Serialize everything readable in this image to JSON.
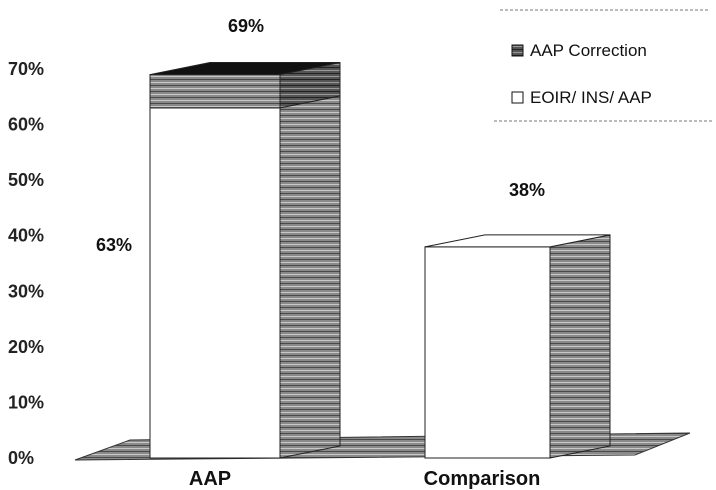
{
  "chart_data": {
    "type": "bar",
    "stacked": true,
    "three_d": true,
    "categories": [
      "AAP",
      "Comparison"
    ],
    "series": [
      {
        "name": "EOIR/ INS/ AAP",
        "values": [
          63,
          38
        ],
        "color": "#ffffff"
      },
      {
        "name": "AAP Correction",
        "values": [
          6,
          0
        ],
        "color": "#1a1a1a"
      }
    ],
    "totals": [
      69,
      38
    ],
    "data_labels": [
      {
        "text": "63%",
        "category": "AAP",
        "series": "EOIR/ INS/ AAP"
      },
      {
        "text": "69%",
        "category": "AAP",
        "series": "total"
      },
      {
        "text": "38%",
        "category": "Comparison",
        "series": "total"
      }
    ],
    "yticks": [
      "0%",
      "10%",
      "20%",
      "30%",
      "40%",
      "50%",
      "60%",
      "70%"
    ],
    "ylim": [
      0,
      70
    ],
    "ylabel": "",
    "xlabel": "",
    "grid": false,
    "legend_position": "top-right",
    "legend": [
      "AAP Correction",
      "EOIR/ INS/ AAP"
    ]
  }
}
